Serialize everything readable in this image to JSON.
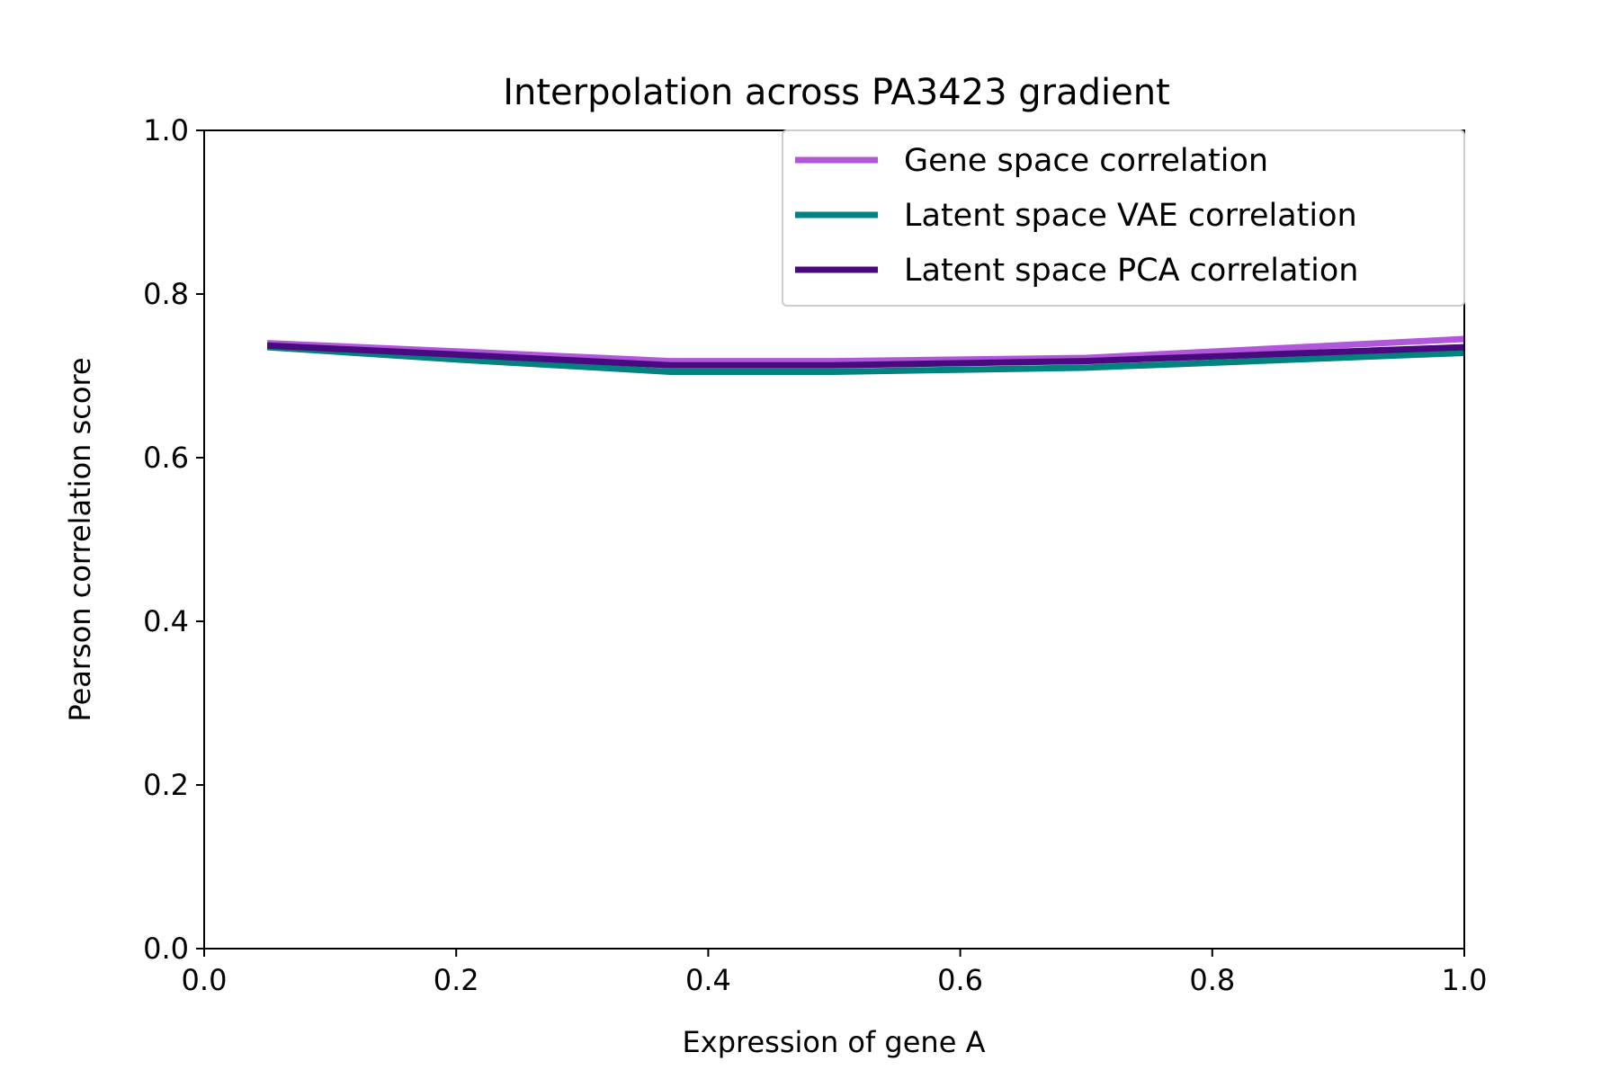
{
  "chart_data": {
    "type": "line",
    "title": "Interpolation across PA3423 gradient",
    "xlabel": "Expression of gene A",
    "ylabel": "Pearson correlation score",
    "xlim": [
      0.0,
      1.0
    ],
    "ylim": [
      0.0,
      1.0
    ],
    "xticks": [
      "0.0",
      "0.2",
      "0.4",
      "0.6",
      "0.8",
      "1.0"
    ],
    "yticks": [
      "0.0",
      "0.2",
      "0.4",
      "0.6",
      "0.8",
      "1.0"
    ],
    "grid": false,
    "legend_position": "top-right",
    "x": [
      0.05,
      0.2,
      0.37,
      0.5,
      0.7,
      1.0
    ],
    "series": [
      {
        "name": "Gene space correlation",
        "color": "#b157d9",
        "values": [
          0.74,
          0.73,
          0.718,
          0.718,
          0.722,
          0.745
        ]
      },
      {
        "name": "Latent space VAE correlation",
        "color": "#00827f",
        "values": [
          0.735,
          0.72,
          0.705,
          0.705,
          0.71,
          0.728
        ]
      },
      {
        "name": "Latent space PCA correlation",
        "color": "#4a0a7f",
        "values": [
          0.737,
          0.726,
          0.713,
          0.713,
          0.718,
          0.735
        ]
      }
    ]
  }
}
